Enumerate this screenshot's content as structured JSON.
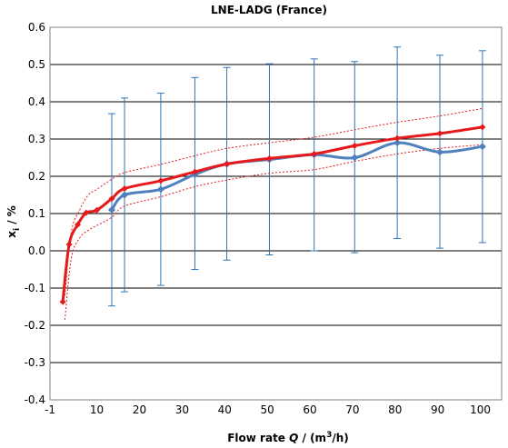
{
  "chart_data": {
    "type": "line",
    "title": "LNE-LADG  (France)",
    "xlabel": "Flow rate Q / (m3/h)",
    "ylabel": "xi / %",
    "xlim": [
      -1,
      105
    ],
    "ylim": [
      -0.4,
      0.6
    ],
    "x_ticks": [
      -1,
      10,
      20,
      30,
      40,
      50,
      60,
      70,
      80,
      90,
      100
    ],
    "y_ticks": [
      -0.4,
      -0.3,
      -0.2,
      -0.1,
      0.0,
      0.1,
      0.2,
      0.3,
      0.4,
      0.5,
      0.6
    ],
    "x_tick_labels": [
      "-1",
      "10",
      "20",
      "30",
      "40",
      "50",
      "60",
      "70",
      "80",
      "90",
      "100"
    ],
    "y_tick_labels": [
      "-0.4",
      "-0.3",
      "-0.2",
      "-0.1",
      "0.0",
      "0.1",
      "0.2",
      "0.3",
      "0.4",
      "0.5",
      "0.6"
    ],
    "grid": "horizontal",
    "legend": "none",
    "colors": {
      "measured": "#4f81bd",
      "fit": "#e41a1c",
      "error_bar": "#2e75b6",
      "grid": "#000000"
    },
    "series": [
      {
        "style": "measured-with-error-bars",
        "x": [
          13.5,
          16.5,
          25,
          33,
          40.5,
          50.5,
          61,
          70.5,
          80.5,
          90.5,
          100.5
        ],
        "y": [
          0.11,
          0.15,
          0.165,
          0.205,
          0.233,
          0.245,
          0.258,
          0.25,
          0.29,
          0.265,
          0.28
        ],
        "err_low": [
          -0.148,
          -0.11,
          -0.093,
          -0.05,
          -0.025,
          -0.011,
          0.0,
          -0.005,
          0.033,
          0.007,
          0.022
        ],
        "err_high": [
          0.368,
          0.41,
          0.423,
          0.465,
          0.492,
          0.502,
          0.515,
          0.508,
          0.547,
          0.525,
          0.537
        ]
      },
      {
        "style": "fit",
        "x": [
          2,
          3.5,
          5.5,
          7.5,
          10,
          13.5,
          16.5,
          25,
          33,
          40.5,
          50.5,
          61,
          70.5,
          80.5,
          90.5,
          100.5
        ],
        "y": [
          -0.137,
          0.017,
          0.07,
          0.102,
          0.109,
          0.14,
          0.167,
          0.188,
          0.212,
          0.233,
          0.248,
          0.26,
          0.282,
          0.302,
          0.315,
          0.332
        ]
      },
      {
        "style": "upper-band",
        "x": [
          2.5,
          4,
          6,
          8,
          10,
          13.5,
          16.5,
          25,
          33,
          40.5,
          50.5,
          61,
          70.5,
          80.5,
          90.5,
          100.5
        ],
        "y": [
          -0.12,
          0.05,
          0.11,
          0.15,
          0.165,
          0.192,
          0.21,
          0.232,
          0.255,
          0.275,
          0.29,
          0.305,
          0.325,
          0.345,
          0.362,
          0.382
        ]
      },
      {
        "style": "lower-band",
        "x": [
          2.5,
          4,
          6,
          8,
          10,
          13.5,
          16.5,
          25,
          33,
          40.5,
          50.5,
          61,
          70.5,
          80.5,
          90.5,
          100.5
        ],
        "y": [
          -0.185,
          -0.02,
          0.035,
          0.055,
          0.068,
          0.09,
          0.12,
          0.145,
          0.172,
          0.19,
          0.208,
          0.218,
          0.24,
          0.26,
          0.275,
          0.285
        ]
      }
    ]
  }
}
